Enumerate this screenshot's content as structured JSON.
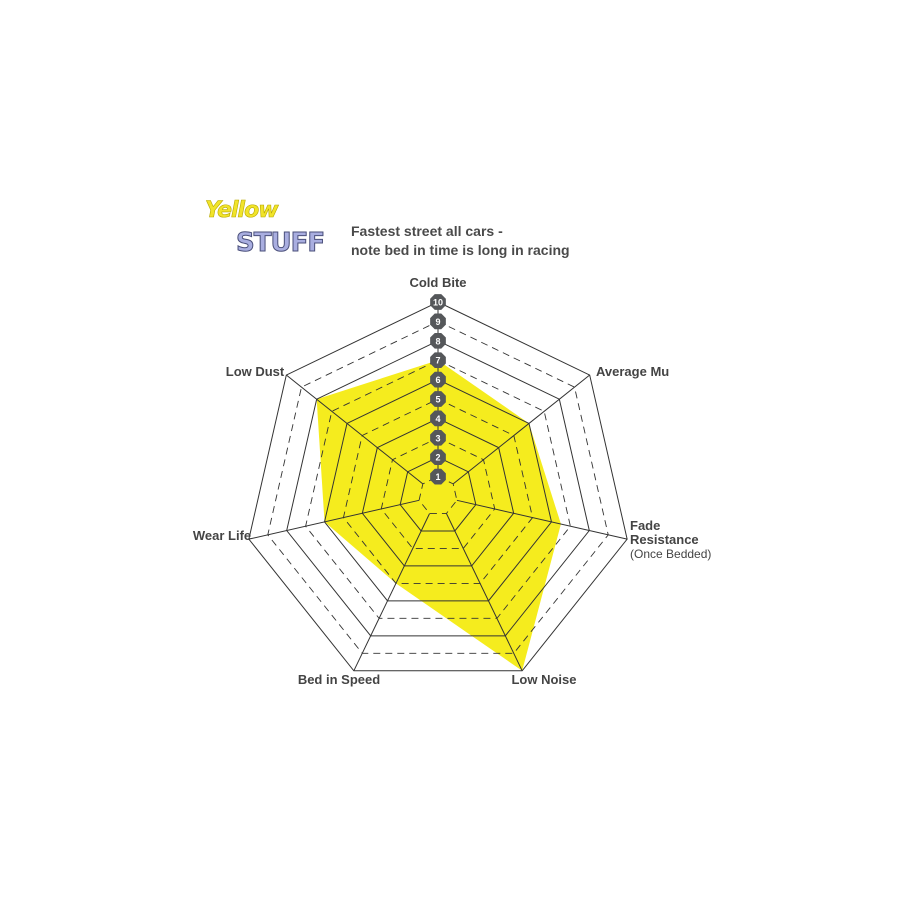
{
  "logo": {
    "line1": "Yellow",
    "line2": "STUFF"
  },
  "subtitle": [
    "Fastest street all cars -",
    "note bed in time is long in racing"
  ],
  "chart_data": {
    "type": "radar",
    "axes": [
      "Cold Bite",
      "Average Mu",
      "Fade Resistance",
      "Low Noise",
      "Bed in Speed",
      "Wear Life",
      "Low Dust"
    ],
    "axis_sublabels": {
      "Fade Resistance": "(Once Bedded)"
    },
    "values": [
      7,
      6,
      6.5,
      10,
      5,
      6,
      8
    ],
    "range": [
      0,
      10
    ],
    "ticks": [
      "1",
      "2",
      "3",
      "4",
      "5",
      "6",
      "7",
      "8",
      "9",
      "10"
    ],
    "fill_color": "#f5ec1e",
    "grid_color": "#333333",
    "tick_badge_color": "#55575a"
  }
}
